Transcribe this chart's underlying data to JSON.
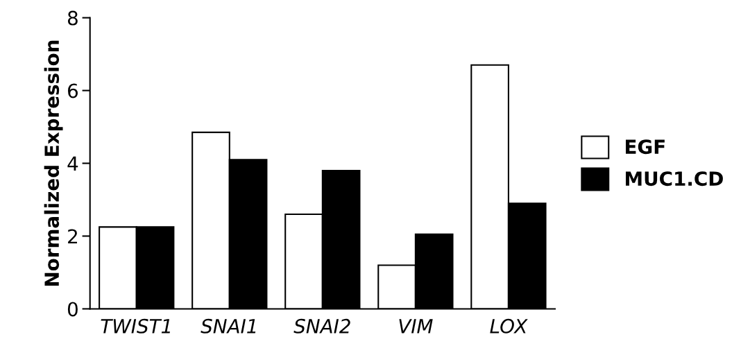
{
  "chart_data": {
    "type": "bar",
    "ylabel": "Normalized Expression",
    "categories": [
      "TWIST1",
      "SNAI1",
      "SNAI2",
      "VIM",
      "LOX"
    ],
    "series": [
      {
        "name": "EGF",
        "color": "#ffffff",
        "values": [
          2.25,
          4.85,
          2.6,
          1.2,
          6.7
        ]
      },
      {
        "name": "MUC1.CD",
        "color": "#000000",
        "values": [
          2.25,
          4.1,
          3.8,
          2.05,
          2.9
        ]
      }
    ],
    "ylim": [
      0,
      8
    ],
    "yticks": [
      0,
      2,
      4,
      6,
      8
    ],
    "grid": false,
    "legend": "right"
  }
}
